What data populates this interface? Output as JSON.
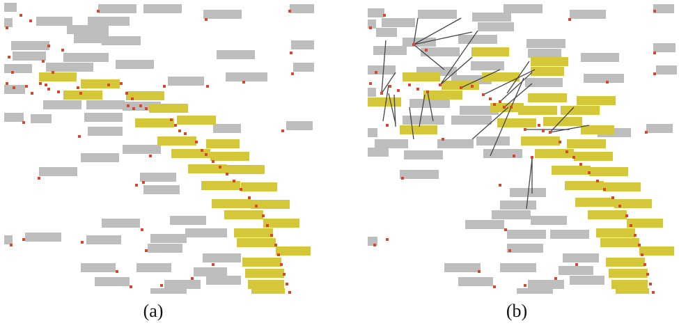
{
  "captions": {
    "a": "(a)",
    "b": "(b)"
  },
  "colors": {
    "label": "#bdbdbd",
    "highlight": "#d4c83a",
    "point": "#d9472b",
    "leader": "#444444"
  }
}
